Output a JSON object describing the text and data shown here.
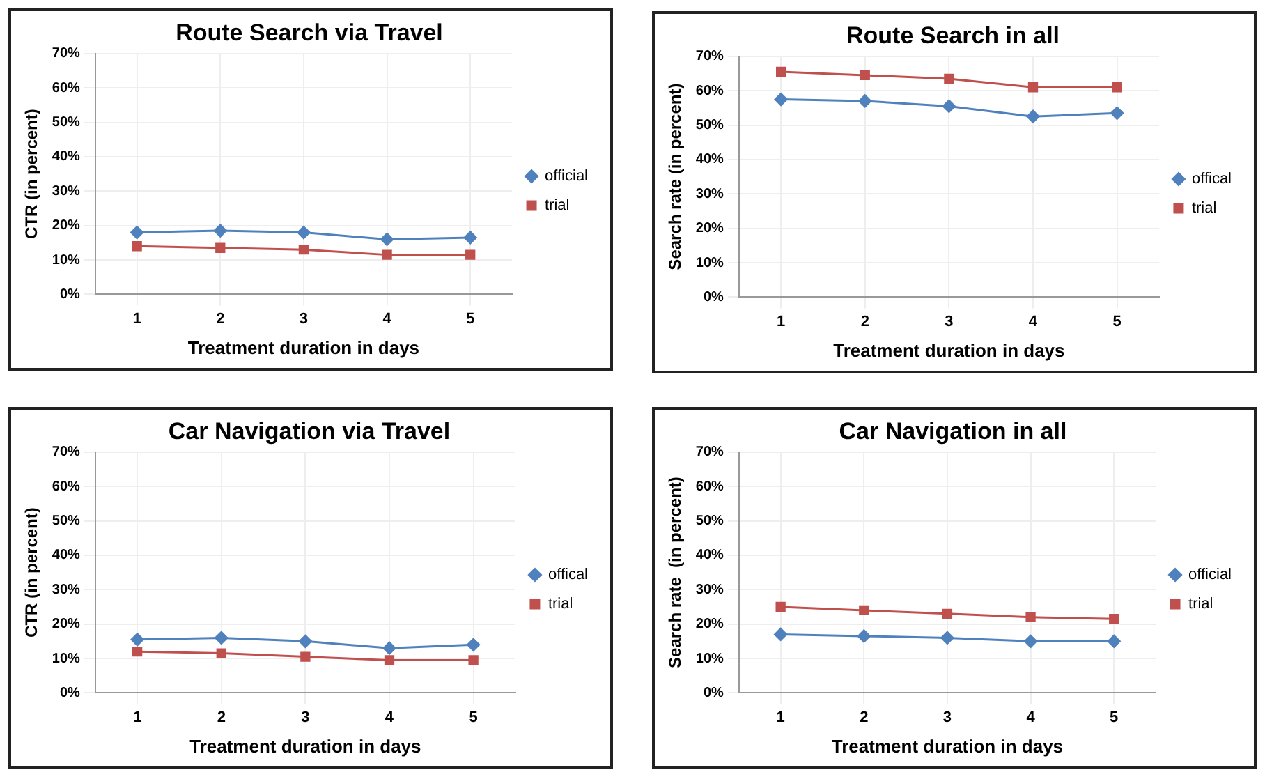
{
  "chart_data": [
    {
      "type": "line",
      "title": "Route Search via Travel",
      "xlabel": "Treatment duration in days",
      "ylabel": "CTR (in percent)",
      "categories": [
        "1",
        "2",
        "3",
        "4",
        "5"
      ],
      "series": [
        {
          "name": "official",
          "color": "#4f81bd",
          "marker": "diamond",
          "values": [
            18,
            18.5,
            18,
            16,
            16.5
          ]
        },
        {
          "name": "trial",
          "color": "#c0504d",
          "marker": "square",
          "values": [
            14,
            13.5,
            13,
            11.5,
            11.5
          ]
        }
      ],
      "ylim": [
        0,
        70
      ],
      "yticks": [
        {
          "value": 0,
          "label": "0%"
        },
        {
          "value": 10,
          "label": "10%"
        },
        {
          "value": 20,
          "label": "20%"
        },
        {
          "value": 30,
          "label": "30%"
        },
        {
          "value": 40,
          "label": "40%"
        },
        {
          "value": 50,
          "label": "50%"
        },
        {
          "value": 60,
          "label": "60%"
        },
        {
          "value": 70,
          "label": "70%"
        }
      ],
      "grid": true,
      "legend": "right"
    },
    {
      "type": "line",
      "title": "Route Search in all",
      "xlabel": "Treatment duration in days",
      "ylabel": "Search rate (in percent)",
      "categories": [
        "1",
        "2",
        "3",
        "4",
        "5"
      ],
      "series": [
        {
          "name": "offical",
          "color": "#4f81bd",
          "marker": "diamond",
          "values": [
            57.5,
            57,
            55.5,
            52.5,
            53.5
          ]
        },
        {
          "name": "trial",
          "color": "#c0504d",
          "marker": "square",
          "values": [
            65.5,
            64.5,
            63.5,
            61,
            61
          ]
        }
      ],
      "ylim": [
        0,
        70
      ],
      "yticks": [
        {
          "value": 0,
          "label": "0%"
        },
        {
          "value": 10,
          "label": "10%"
        },
        {
          "value": 20,
          "label": "20%"
        },
        {
          "value": 30,
          "label": "30%"
        },
        {
          "value": 40,
          "label": "40%"
        },
        {
          "value": 50,
          "label": "50%"
        },
        {
          "value": 60,
          "label": "60%"
        },
        {
          "value": 70,
          "label": "70%"
        }
      ],
      "grid": true,
      "legend": "right"
    },
    {
      "type": "line",
      "title": "Car Navigation via Travel",
      "xlabel": "Treatment duration in days",
      "ylabel": "CTR (in percent)",
      "categories": [
        "1",
        "2",
        "3",
        "4",
        "5"
      ],
      "series": [
        {
          "name": "offical",
          "color": "#4f81bd",
          "marker": "diamond",
          "values": [
            15.5,
            16,
            15,
            13,
            14
          ]
        },
        {
          "name": "trial",
          "color": "#c0504d",
          "marker": "square",
          "values": [
            12,
            11.5,
            10.5,
            9.5,
            9.5
          ]
        }
      ],
      "ylim": [
        0,
        70
      ],
      "yticks": [
        {
          "value": 0,
          "label": "0%"
        },
        {
          "value": 10,
          "label": "10%"
        },
        {
          "value": 20,
          "label": "20%"
        },
        {
          "value": 30,
          "label": "30%"
        },
        {
          "value": 40,
          "label": "40%"
        },
        {
          "value": 50,
          "label": "50%"
        },
        {
          "value": 60,
          "label": "60%"
        },
        {
          "value": 70,
          "label": "70%"
        }
      ],
      "grid": true,
      "legend": "right"
    },
    {
      "type": "line",
      "title": "Car Navigation in all",
      "xlabel": "Treatment duration in days",
      "ylabel": "Search rate  (in percent)",
      "categories": [
        "1",
        "2",
        "3",
        "4",
        "5"
      ],
      "series": [
        {
          "name": "official",
          "color": "#4f81bd",
          "marker": "diamond",
          "values": [
            17,
            16.5,
            16,
            15,
            15
          ]
        },
        {
          "name": "trial",
          "color": "#c0504d",
          "marker": "square",
          "values": [
            25,
            24,
            23,
            22,
            21.5
          ]
        }
      ],
      "ylim": [
        0,
        70
      ],
      "yticks": [
        {
          "value": 0,
          "label": "0%"
        },
        {
          "value": 10,
          "label": "10%"
        },
        {
          "value": 20,
          "label": "20%"
        },
        {
          "value": 30,
          "label": "30%"
        },
        {
          "value": 40,
          "label": "40%"
        },
        {
          "value": 50,
          "label": "50%"
        },
        {
          "value": 60,
          "label": "60%"
        },
        {
          "value": 70,
          "label": "70%"
        }
      ],
      "grid": true,
      "legend": "right"
    }
  ]
}
